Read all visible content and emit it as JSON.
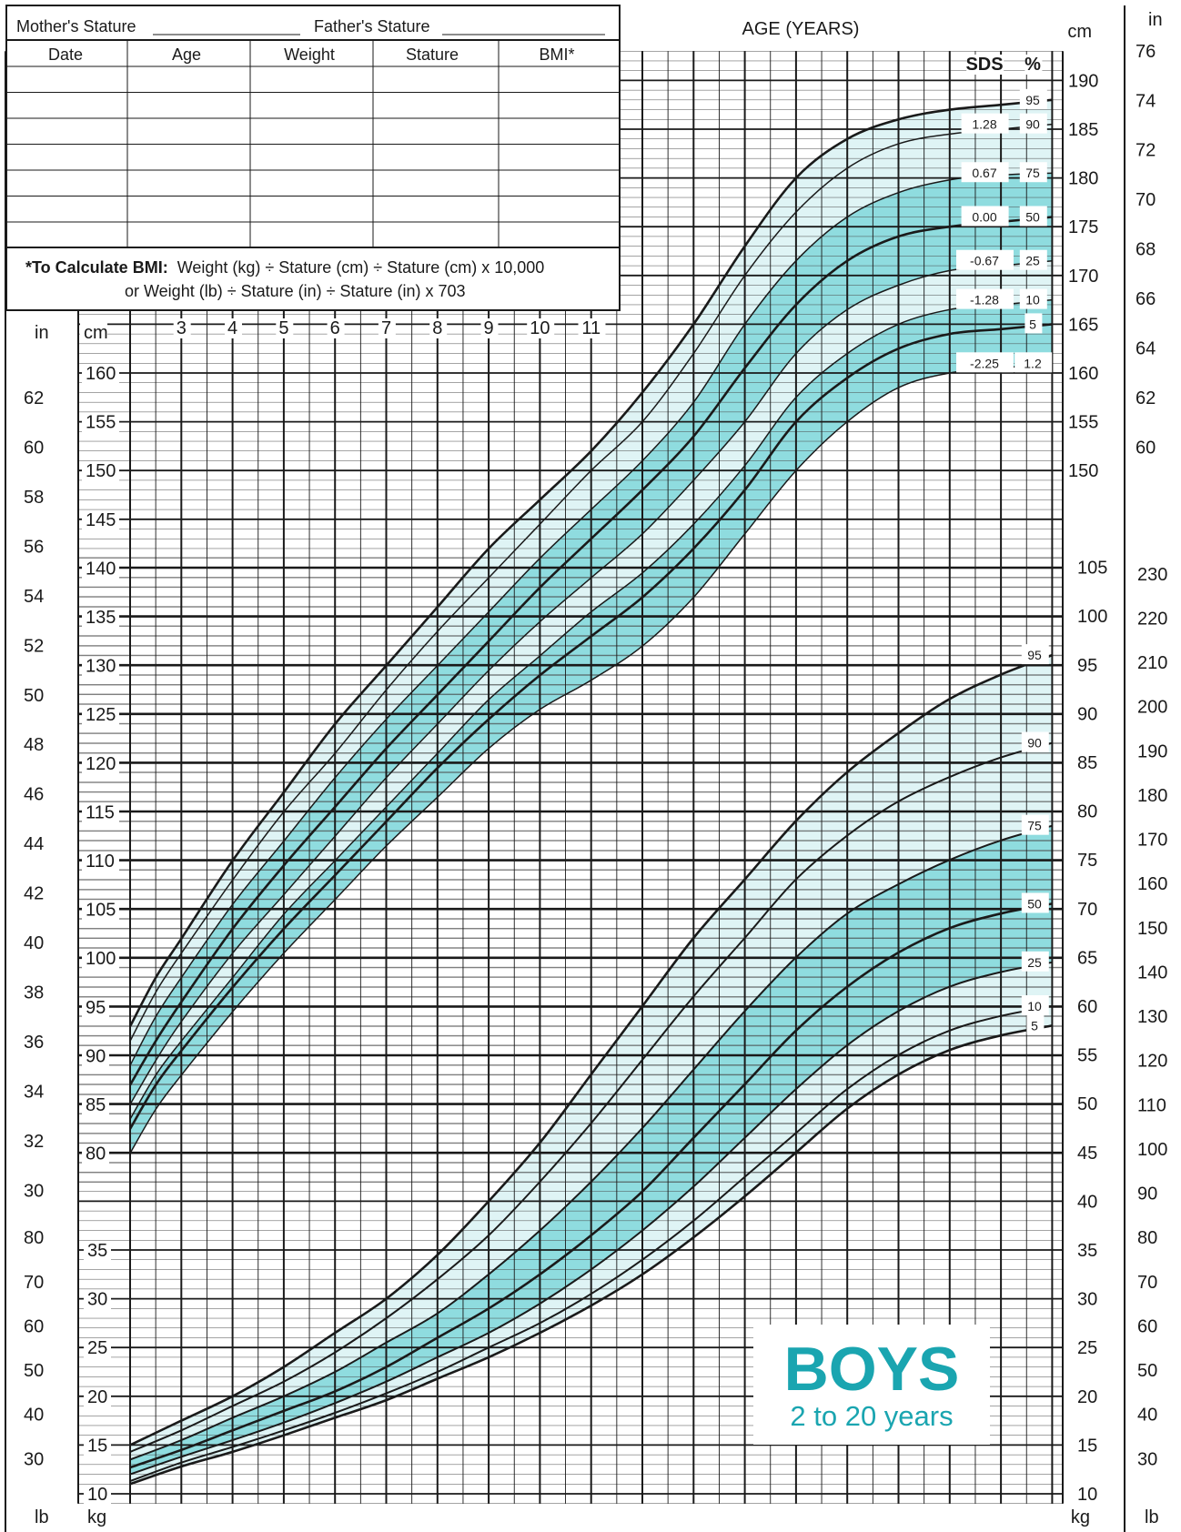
{
  "colors": {
    "band": "#8fdcdf",
    "band_light": "#dff4f5",
    "brand": "#1aa5b0",
    "grid": "#1a1a1a"
  },
  "form": {
    "mother_label": "Mother's Stature",
    "father_label": "Father's Stature",
    "columns": [
      "Date",
      "Age",
      "Weight",
      "Stature",
      "BMI*"
    ],
    "bmi_note_bold": "*To Calculate BMI:",
    "bmi_note_line1": "Weight (kg) ÷ Stature (cm) ÷ Stature (cm) x 10,000",
    "bmi_note_line2": "or Weight (lb) ÷ Stature (in) ÷ Stature (in) x 703"
  },
  "brand": {
    "title": "BOYS",
    "subtitle": "2 to 20 years"
  },
  "chart_data": {
    "type": "line",
    "title": "AGE (YEARS)",
    "x_label": "AGE (YEARS)",
    "x_range": [
      2,
      20
    ],
    "x_ticks_stature": [
      3,
      4,
      5,
      6,
      7,
      8,
      9,
      10,
      11
    ],
    "stature": {
      "units": [
        "cm",
        "in"
      ],
      "y_range_cm": [
        77,
        193
      ],
      "cm_ticks_left": [
        80,
        85,
        90,
        95,
        100,
        105,
        110,
        115,
        120,
        125,
        130,
        135,
        140,
        145,
        150,
        155,
        160
      ],
      "cm_ticks_right": [
        150,
        155,
        160,
        165,
        170,
        175,
        180,
        185,
        190
      ],
      "in_ticks_left": [
        30,
        32,
        34,
        36,
        38,
        40,
        42,
        44,
        46,
        48,
        50,
        52,
        54,
        56,
        58,
        60,
        62
      ],
      "in_ticks_right": [
        60,
        62,
        64,
        66,
        68,
        70,
        72,
        74,
        76
      ],
      "sds_header": "SDS",
      "pct_header": "%",
      "percentile_labels": [
        "95",
        "90",
        "75",
        "50",
        "25",
        "10",
        "5",
        "1.2"
      ],
      "sds_labels": [
        "1.28",
        "0.67",
        "0.00",
        "-0.67",
        "-1.28",
        "-2.25"
      ],
      "x": [
        2,
        2.5,
        3,
        4,
        5,
        6,
        7,
        8,
        9,
        10,
        11,
        12,
        13,
        14,
        15,
        16,
        17,
        18,
        19,
        20
      ],
      "series": [
        {
          "name": "95",
          "values": [
            93,
            98,
            102,
            110,
            117,
            124,
            130,
            136,
            142,
            147,
            152,
            158,
            165,
            173,
            180,
            184,
            186,
            187,
            187.5,
            188
          ]
        },
        {
          "name": "90",
          "values": [
            91.5,
            96.5,
            100.5,
            108,
            115,
            121,
            127.5,
            133.5,
            139,
            144.5,
            150,
            155,
            162,
            170,
            176.5,
            181,
            183.5,
            184.5,
            185,
            185.5
          ]
        },
        {
          "name": "75",
          "values": [
            89,
            94,
            98,
            105.5,
            112,
            118.5,
            124.5,
            130,
            135.5,
            141,
            146,
            151,
            157,
            165,
            171.5,
            176,
            178.5,
            179.8,
            180.3,
            180.5
          ]
        },
        {
          "name": "50",
          "values": [
            87,
            91.5,
            95.5,
            103,
            109.5,
            115.5,
            121.5,
            127,
            132.5,
            138,
            143,
            148,
            153.5,
            160.5,
            167,
            171.5,
            174,
            175,
            175.5,
            176
          ]
        },
        {
          "name": "25",
          "values": [
            85,
            89.5,
            93.5,
            100.5,
            106.5,
            112.5,
            118.5,
            124,
            129.5,
            134.5,
            139,
            143.5,
            149,
            155,
            162,
            166.5,
            169,
            170.5,
            171,
            171.5
          ]
        },
        {
          "name": "10",
          "values": [
            83.5,
            88,
            91.5,
            98,
            104.5,
            110,
            115.5,
            121,
            126.5,
            131,
            135.5,
            139.5,
            144.5,
            150.5,
            157.5,
            162,
            165,
            166.5,
            167,
            167.5
          ]
        },
        {
          "name": "5",
          "values": [
            82.5,
            87,
            90.5,
            97,
            103,
            108.5,
            114,
            119.5,
            124.5,
            129,
            133,
            137,
            142,
            148,
            155,
            159.5,
            162.5,
            164,
            164.5,
            165
          ]
        },
        {
          "name": "1.2",
          "values": [
            80,
            84.5,
            88,
            94.5,
            100.5,
            106,
            111.5,
            116.5,
            121.5,
            125.5,
            128.5,
            132,
            137,
            143.5,
            150,
            155,
            158.5,
            160,
            160.5,
            161
          ]
        }
      ]
    },
    "weight": {
      "units": [
        "kg",
        "lb"
      ],
      "y_range_kg": [
        9,
        106
      ],
      "kg_ticks_left": [
        10,
        15,
        20,
        25,
        30,
        35
      ],
      "kg_ticks_right": [
        10,
        15,
        20,
        25,
        30,
        35,
        40,
        45,
        50,
        55,
        60,
        65,
        70,
        75,
        80,
        85,
        90,
        95,
        100,
        105
      ],
      "lb_ticks_left": [
        30,
        40,
        50,
        60,
        70,
        80
      ],
      "lb_ticks_right": [
        30,
        40,
        50,
        60,
        70,
        80,
        90,
        100,
        110,
        120,
        130,
        140,
        150,
        160,
        170,
        180,
        190,
        200,
        210,
        220,
        230
      ],
      "percentile_labels": [
        "95",
        "90",
        "75",
        "50",
        "25",
        "10",
        "5"
      ],
      "x": [
        2,
        3,
        4,
        5,
        6,
        7,
        8,
        9,
        10,
        11,
        12,
        13,
        14,
        15,
        16,
        17,
        18,
        19,
        20
      ],
      "series": [
        {
          "name": "95",
          "values": [
            15,
            17.5,
            20,
            23,
            26.5,
            30,
            34.5,
            40,
            46,
            53,
            60,
            67,
            73,
            79,
            84,
            88,
            91.5,
            94,
            96
          ]
        },
        {
          "name": "90",
          "values": [
            14.3,
            16.5,
            19,
            21.5,
            24.5,
            28,
            32,
            36.5,
            42,
            48,
            54.5,
            61,
            67,
            73,
            77.5,
            81,
            83.5,
            85.5,
            87
          ]
        },
        {
          "name": "75",
          "values": [
            13.5,
            15.5,
            17.8,
            20,
            22.5,
            25.5,
            28.5,
            32.5,
            37,
            42,
            47.5,
            53.5,
            59.5,
            65,
            69.5,
            72.5,
            75,
            77,
            78.5
          ]
        },
        {
          "name": "50",
          "values": [
            12.7,
            14.5,
            16.5,
            18.5,
            20.5,
            23,
            26,
            29,
            32.5,
            36.5,
            41,
            46.5,
            52,
            57.5,
            62,
            65.5,
            68,
            69.5,
            70.5
          ]
        },
        {
          "name": "25",
          "values": [
            12,
            13.8,
            15.5,
            17.3,
            19.3,
            21.5,
            24,
            26.5,
            29.5,
            33,
            37,
            41.5,
            46.5,
            51.5,
            56,
            59.5,
            62,
            63.5,
            64.5
          ]
        },
        {
          "name": "10",
          "values": [
            11.3,
            13.2,
            14.8,
            16.5,
            18.3,
            20.3,
            22.5,
            25,
            27.5,
            30.5,
            34,
            38,
            42.5,
            47,
            51.5,
            55,
            57.5,
            59,
            60
          ]
        },
        {
          "name": "5",
          "values": [
            11,
            12.8,
            14.3,
            16,
            17.8,
            19.6,
            21.8,
            24,
            26.5,
            29.3,
            32.5,
            36.3,
            40.5,
            45,
            49.5,
            53,
            55.5,
            57,
            58
          ]
        }
      ]
    }
  }
}
